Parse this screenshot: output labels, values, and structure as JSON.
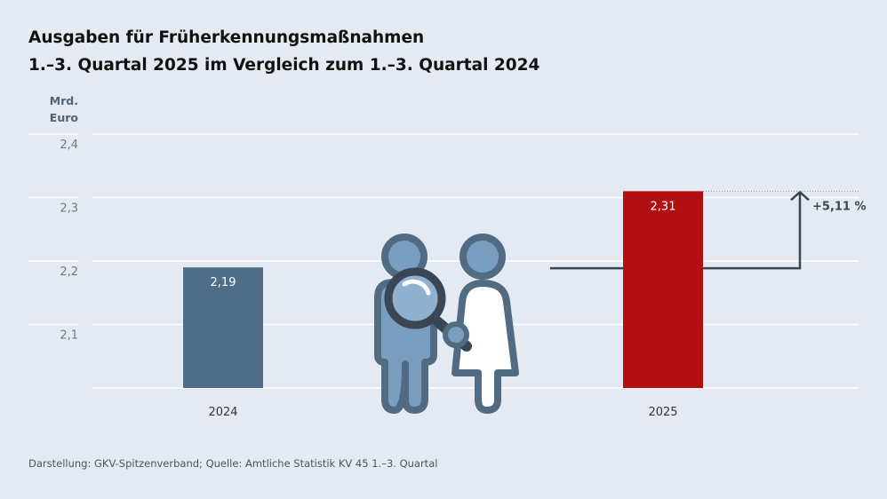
{
  "title_line1": "Ausgaben für Früherkennungsmaßnahmen",
  "title_line2": "1.–3. Quartal 2025 im Vergleich zum 1.–3. Quartal 2024",
  "source": "Darstellung: GKV-Spitzenverband; Quelle: Amtliche Statistik KV 45 1.–3. Quartal",
  "illustration_icon": "people-with-magnifier-icon",
  "chart_data": {
    "type": "bar",
    "ylabel_line1": "Mrd.",
    "ylabel_line2": "Euro",
    "categories": [
      "2024",
      "2025"
    ],
    "values": [
      2.19,
      2.31
    ],
    "value_labels": [
      "2,19",
      "2,31"
    ],
    "colors": [
      "#506d87",
      "#b20f12"
    ],
    "ylim": [
      2.0,
      2.4
    ],
    "yticks": [
      2.1,
      2.2,
      2.3,
      2.4
    ],
    "ytick_labels": [
      "2,1",
      "2,2",
      "2,3",
      "2,4"
    ],
    "grid": true,
    "change_annotation": "+5,11 %"
  }
}
